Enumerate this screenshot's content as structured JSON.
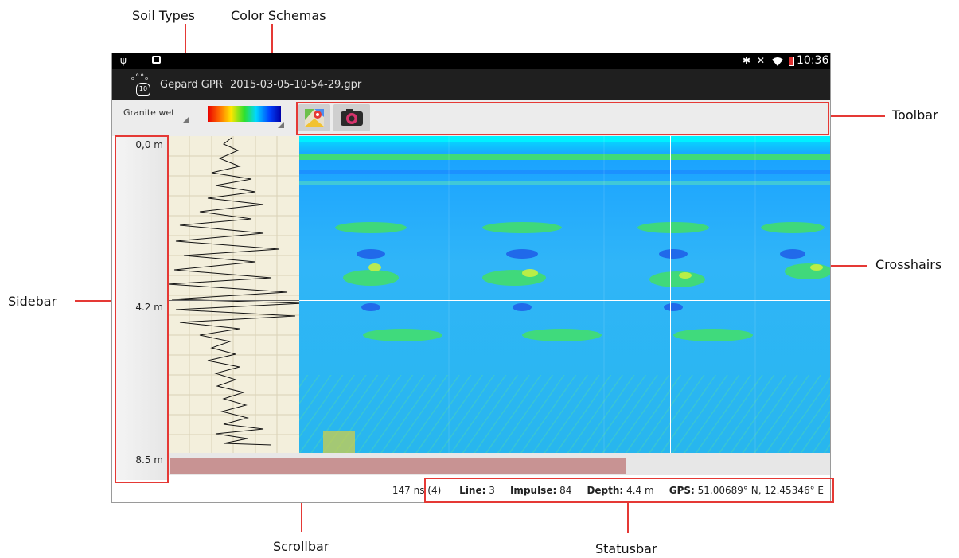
{
  "callouts": {
    "soil_types": "Soil Types",
    "color_schemas": "Color Schemas",
    "toolbar": "Toolbar",
    "crosshairs": "Crosshairs",
    "sidebar": "Sidebar",
    "scrollbar": "Scrollbar",
    "statusbar": "Statusbar"
  },
  "android_status": {
    "time": "10:36"
  },
  "app": {
    "title": "Gepard GPR",
    "separator": "·",
    "filename": "2015-03-05-10-54-29.gpr",
    "logo_text": "10"
  },
  "soil_select": {
    "value": "Granite wet"
  },
  "toolbar": {
    "icons": [
      "maps-icon",
      "camera-icon"
    ]
  },
  "depth_scale": {
    "top": "0,0 m",
    "middle": "4.2 m",
    "bottom": "8.5 m"
  },
  "info": {
    "time_ns": "147 ns",
    "time_index": "(4)",
    "line_label": "Line:",
    "line_value": "3",
    "impulse_label": "Impulse:",
    "impulse_value": "84",
    "depth_label": "Depth:",
    "depth_value": "4.4 m",
    "gps_label": "GPS:",
    "gps_value": "51.00689° N, 12.45346° E"
  },
  "colors": {
    "highlight": "#e53935",
    "scroll_thumb": "#c89393",
    "trace_bg": "#f3efdc",
    "radar_base": "#1fa8f5"
  }
}
